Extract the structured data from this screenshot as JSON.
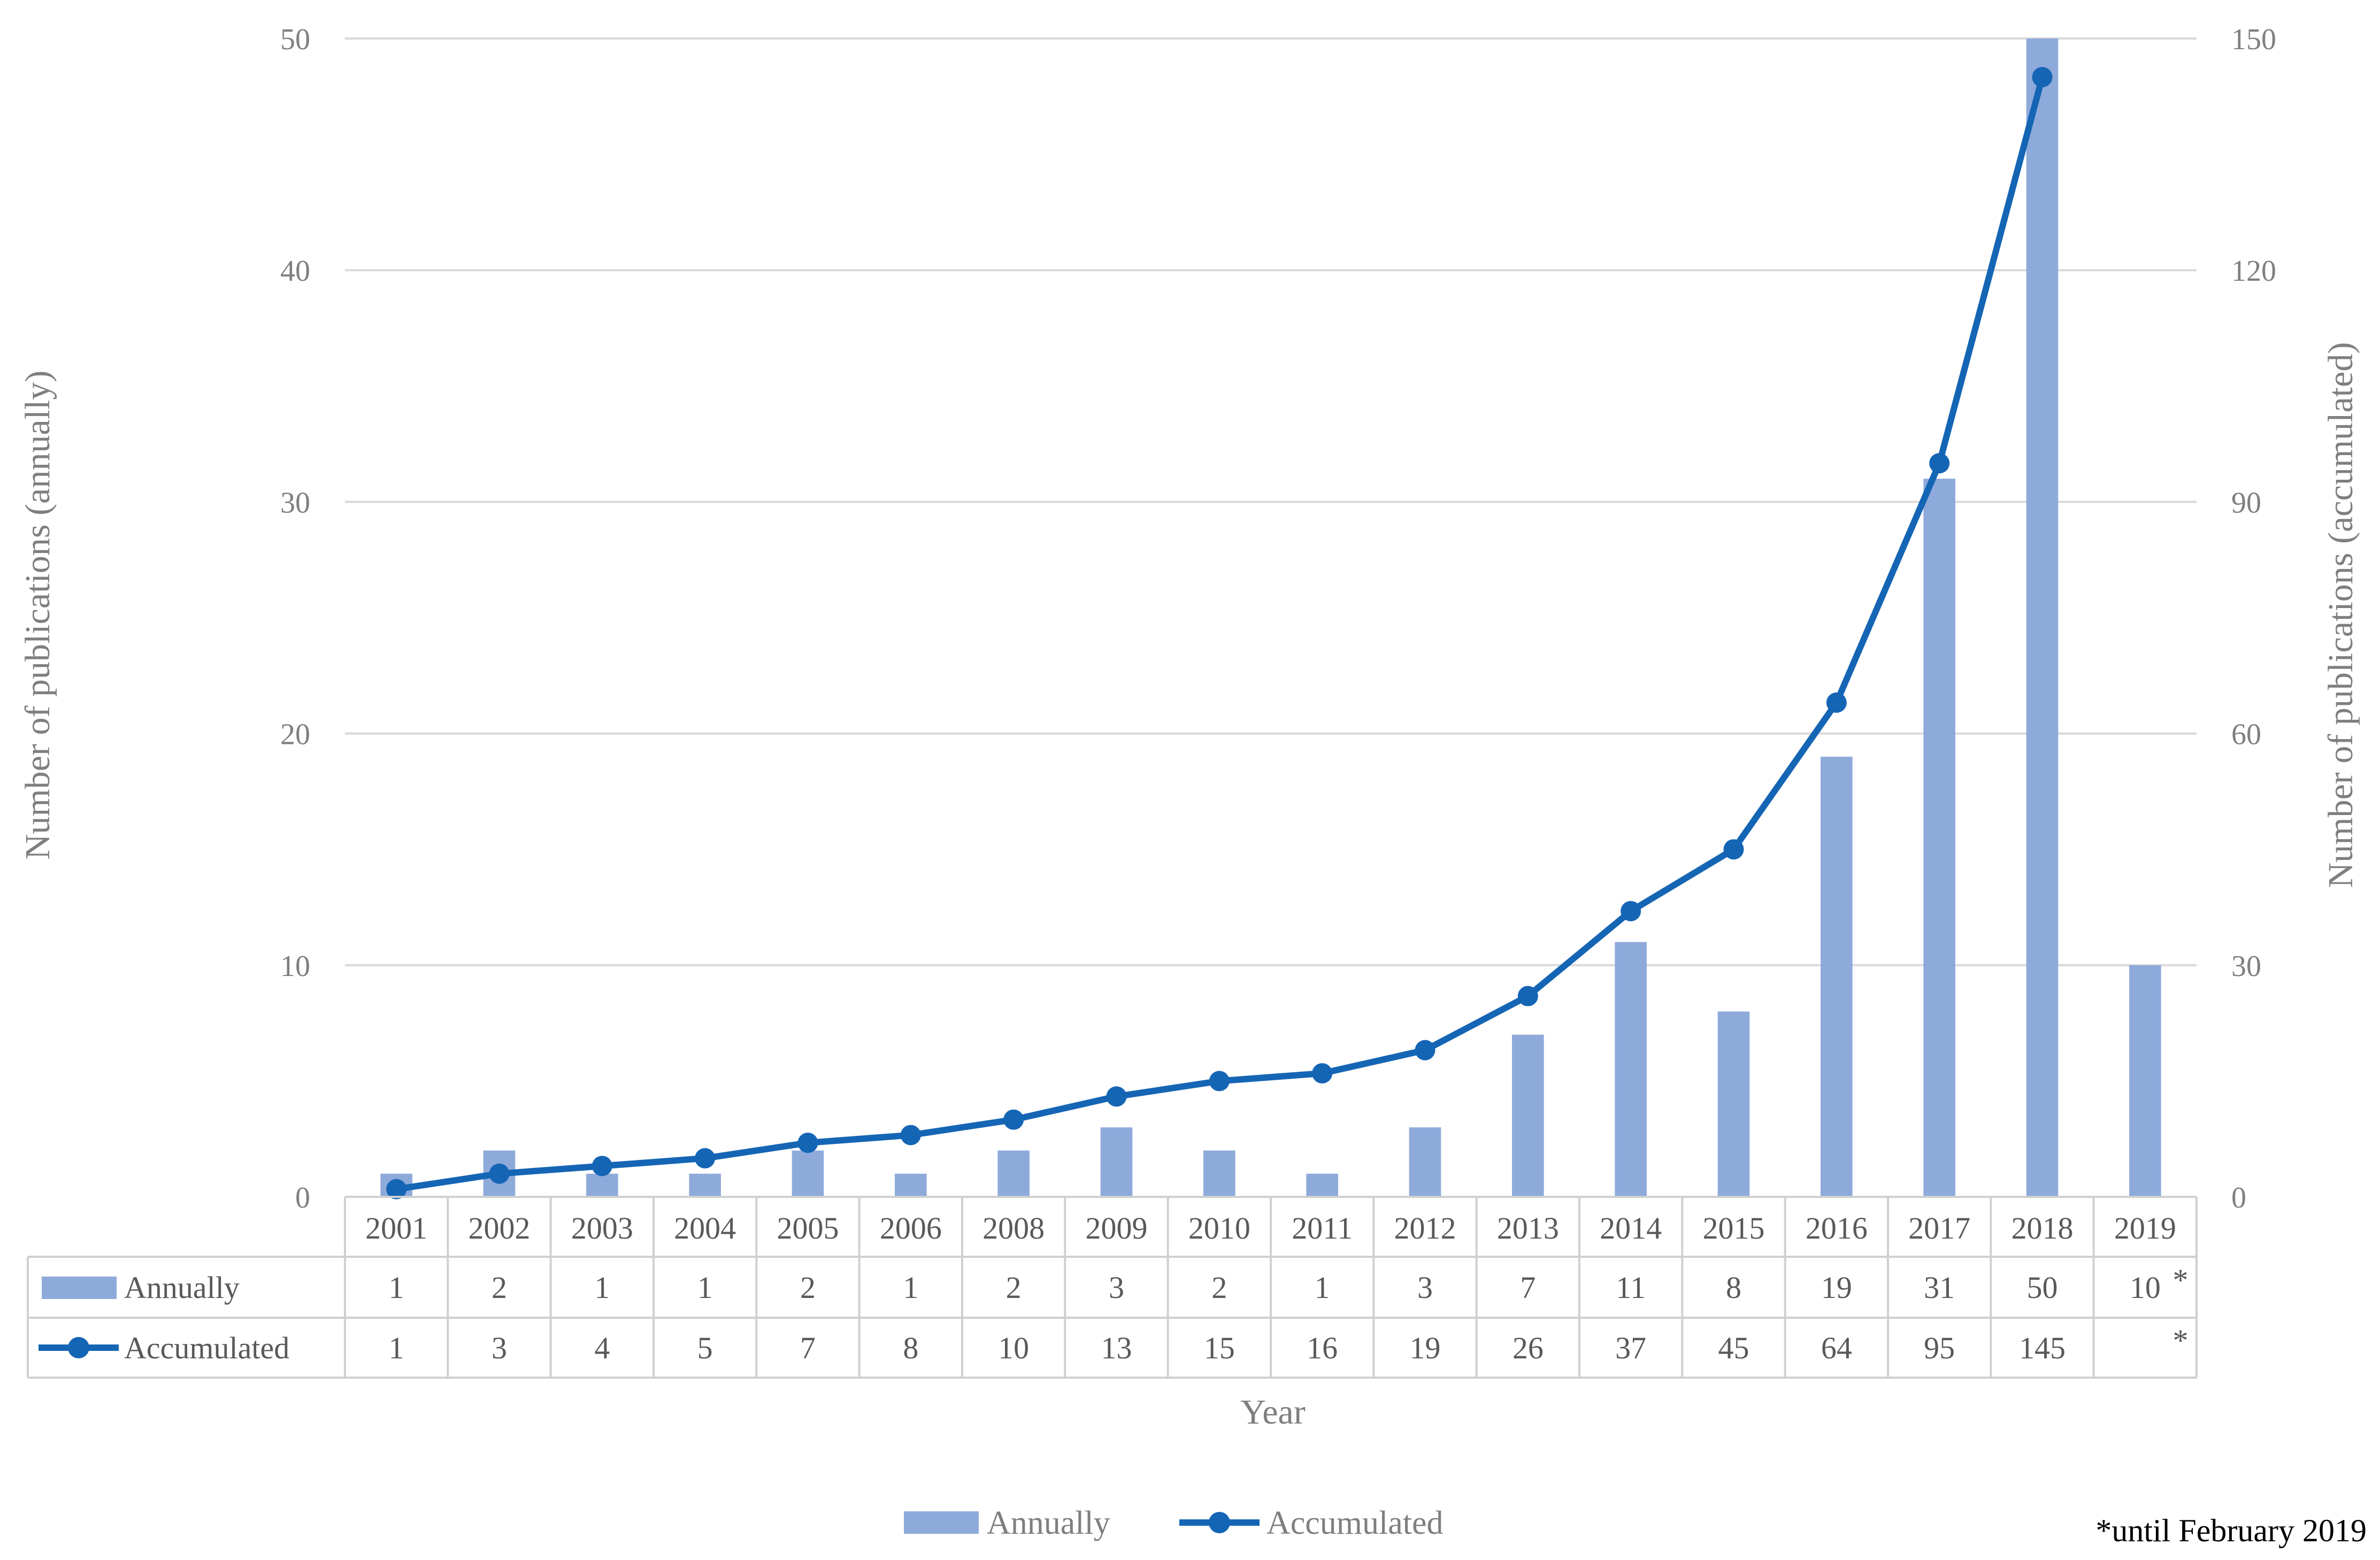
{
  "chart_data": {
    "type": "bar",
    "categories": [
      "2001",
      "2002",
      "2003",
      "2004",
      "2005",
      "2006",
      "2008",
      "2009",
      "2010",
      "2011",
      "2012",
      "2013",
      "2014",
      "2015",
      "2016",
      "2017",
      "2018",
      "2019"
    ],
    "series": [
      {
        "name": "Annually",
        "type": "bar",
        "axis": "left",
        "color": "#8eaadb",
        "values": [
          1,
          2,
          1,
          1,
          2,
          1,
          2,
          3,
          2,
          1,
          3,
          7,
          11,
          8,
          19,
          31,
          50,
          10
        ]
      },
      {
        "name": "Accumulated",
        "type": "line",
        "axis": "right",
        "color": "#1565b5",
        "values": [
          1,
          3,
          4,
          5,
          7,
          8,
          10,
          13,
          15,
          16,
          19,
          26,
          37,
          45,
          64,
          95,
          145,
          null
        ]
      }
    ],
    "table": {
      "rows": [
        {
          "label": "Annually",
          "cells": [
            "1",
            "2",
            "1",
            "1",
            "2",
            "1",
            "2",
            "3",
            "2",
            "1",
            "3",
            "7",
            "11",
            "8",
            "19",
            "31",
            "50",
            "10"
          ],
          "note": "*"
        },
        {
          "label": "Accumulated",
          "cells": [
            "1",
            "3",
            "4",
            "5",
            "7",
            "8",
            "10",
            "13",
            "15",
            "16",
            "19",
            "26",
            "37",
            "45",
            "64",
            "95",
            "145",
            ""
          ],
          "note": "*"
        }
      ]
    },
    "xlabel": "Year",
    "ylabel_left": "Number of publications (annually)",
    "ylabel_right": "Number of publications (accumulated)",
    "ylim_left": [
      0,
      50
    ],
    "yticks_left": [
      "0",
      "10",
      "20",
      "30",
      "40",
      "50"
    ],
    "ylim_right": [
      0,
      150
    ],
    "yticks_right": [
      "0",
      "30",
      "60",
      "90",
      "120",
      "150"
    ],
    "grid": true,
    "legend": {
      "position": "bottom",
      "entries": [
        "Annually",
        "Accumulated"
      ]
    },
    "footnote": "*until February 2019"
  }
}
